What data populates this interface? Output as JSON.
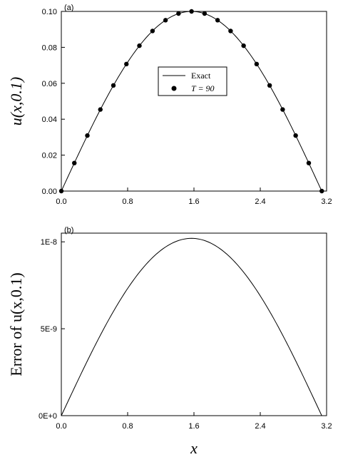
{
  "chart_data": [
    {
      "panel_label": "(a)",
      "type": "line",
      "ylabel": "u(x,0.1)",
      "xlim": [
        0,
        3.2
      ],
      "ylim": [
        0,
        0.1
      ],
      "xticks": [
        "0.0",
        "0.8",
        "1.6",
        "2.4",
        "3.2"
      ],
      "yticks": [
        "0.00",
        "0.02",
        "0.04",
        "0.06",
        "0.08",
        "0.10"
      ],
      "legend": {
        "line_label": "Exact",
        "marker_label": "T = 90",
        "placement": "center"
      },
      "series": [
        {
          "name": "Exact",
          "style": "line",
          "function": "0.1*sin(x)",
          "x_range": [
            0,
            3.14159
          ]
        },
        {
          "name": "T = 90",
          "style": "markers",
          "x": [
            0.0,
            0.157,
            0.314,
            0.471,
            0.628,
            0.785,
            0.942,
            1.1,
            1.257,
            1.414,
            1.571,
            1.728,
            1.885,
            2.042,
            2.199,
            2.356,
            2.513,
            2.67,
            2.827,
            2.985,
            3.142
          ],
          "y": [
            0.0,
            0.0156,
            0.0309,
            0.0454,
            0.0588,
            0.0707,
            0.0809,
            0.0891,
            0.0951,
            0.0988,
            0.1,
            0.0988,
            0.0951,
            0.0891,
            0.0809,
            0.0707,
            0.0588,
            0.0454,
            0.0309,
            0.0156,
            0.0
          ]
        }
      ]
    },
    {
      "panel_label": "(b)",
      "type": "line",
      "ylabel": "Error of u(x,0.1)",
      "xlabel": "x",
      "xlim": [
        0,
        3.2
      ],
      "ylim": [
        0,
        1.05e-08
      ],
      "xticks": [
        "0.0",
        "0.8",
        "1.6",
        "2.4",
        "3.2"
      ],
      "yticks": [
        "0E+0",
        "5E-9",
        "1E-8"
      ],
      "series": [
        {
          "name": "",
          "style": "line",
          "function": "1.02e-8*sin(x)",
          "x_range": [
            0,
            3.14159
          ]
        }
      ]
    }
  ]
}
